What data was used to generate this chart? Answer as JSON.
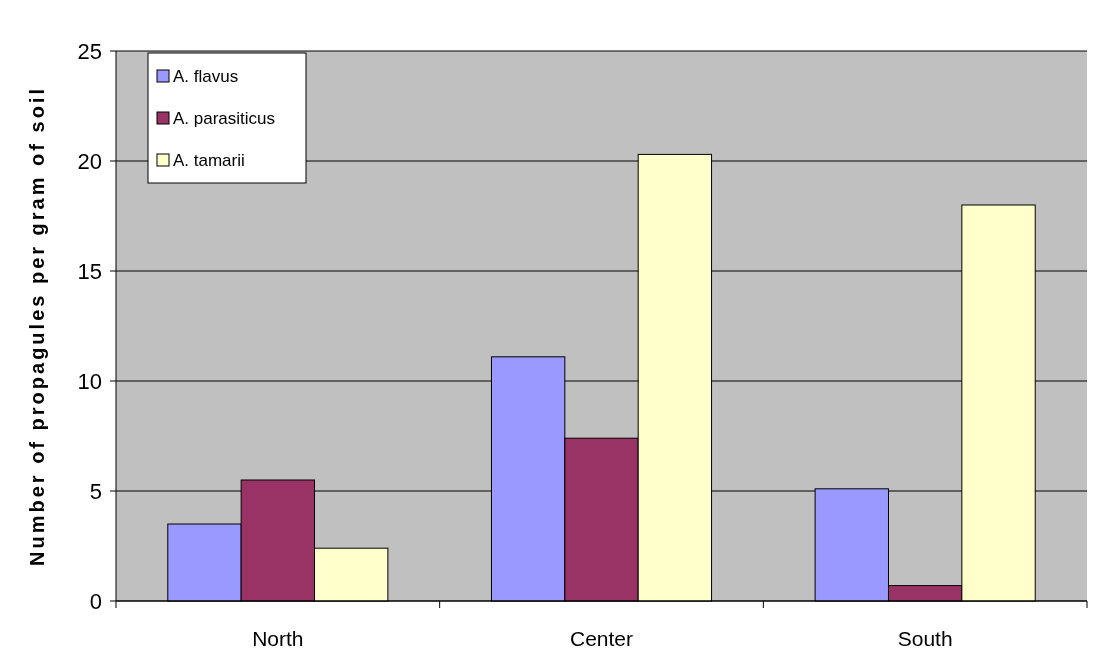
{
  "chart_data": {
    "type": "bar",
    "ylabel": "Number of propagules per gram of soil",
    "categories": [
      "North",
      "Center",
      "South"
    ],
    "series": [
      {
        "name": "A. flavus",
        "color": "#9999ff",
        "values": [
          3.5,
          11.1,
          5.1
        ]
      },
      {
        "name": "A. parasiticus",
        "color": "#993366",
        "values": [
          5.5,
          7.4,
          0.7
        ]
      },
      {
        "name": "A. tamarii",
        "color": "#ffffcc",
        "values": [
          2.4,
          20.3,
          18.0
        ]
      }
    ],
    "ylim": [
      0,
      25
    ],
    "yticks": [
      0,
      5,
      10,
      15,
      20,
      25
    ],
    "grid": "y",
    "legend": "top left"
  }
}
